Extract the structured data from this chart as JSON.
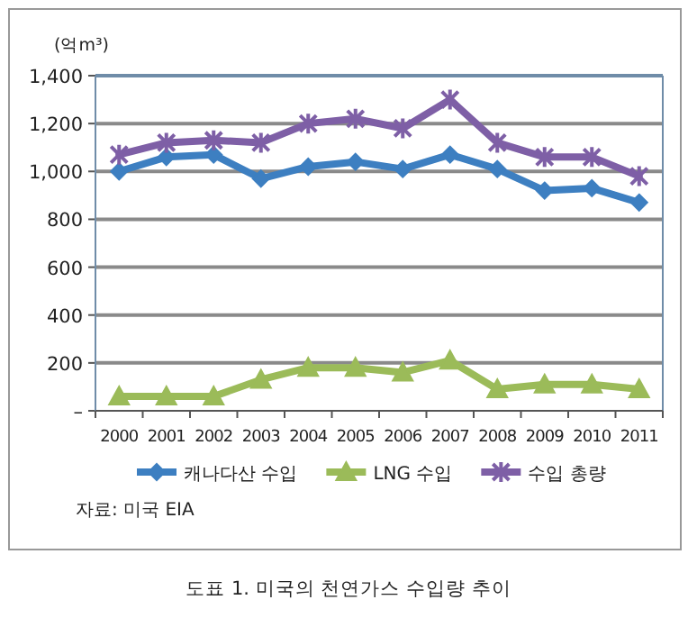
{
  "chart_data": {
    "type": "line",
    "title": "도표 1. 미국의 천연가스 수입량 추이",
    "ylabel": "(억m³)",
    "annotations": [
      "자료: 미국 EIA"
    ],
    "categories": [
      "2000",
      "2001",
      "2002",
      "2003",
      "2004",
      "2005",
      "2006",
      "2007",
      "2008",
      "2009",
      "2010",
      "2011"
    ],
    "series": [
      {
        "name": "캐나다산 수입",
        "color": "#3d7fc1",
        "marker": "diamond",
        "values": [
          1000,
          1060,
          1070,
          970,
          1020,
          1040,
          1010,
          1070,
          1010,
          920,
          930,
          870
        ]
      },
      {
        "name": "LNG 수입",
        "color": "#9bbb59",
        "marker": "triangle",
        "values": [
          60,
          60,
          60,
          130,
          180,
          180,
          160,
          210,
          90,
          110,
          110,
          90
        ]
      },
      {
        "name": "수입 총량",
        "color": "#7e5fa6",
        "marker": "cross",
        "values": [
          1070,
          1120,
          1130,
          1120,
          1200,
          1220,
          1180,
          1300,
          1120,
          1060,
          1060,
          980
        ]
      }
    ],
    "ylim": [
      0,
      1400
    ],
    "yticks": [
      {
        "value": 0,
        "label": "–"
      },
      200,
      400,
      600,
      800,
      {
        "value": 1000,
        "label": "1,000"
      },
      {
        "value": 1200,
        "label": "1,200"
      },
      {
        "value": 1400,
        "label": "1,400"
      }
    ],
    "grid": "y",
    "legend": "bottom"
  }
}
